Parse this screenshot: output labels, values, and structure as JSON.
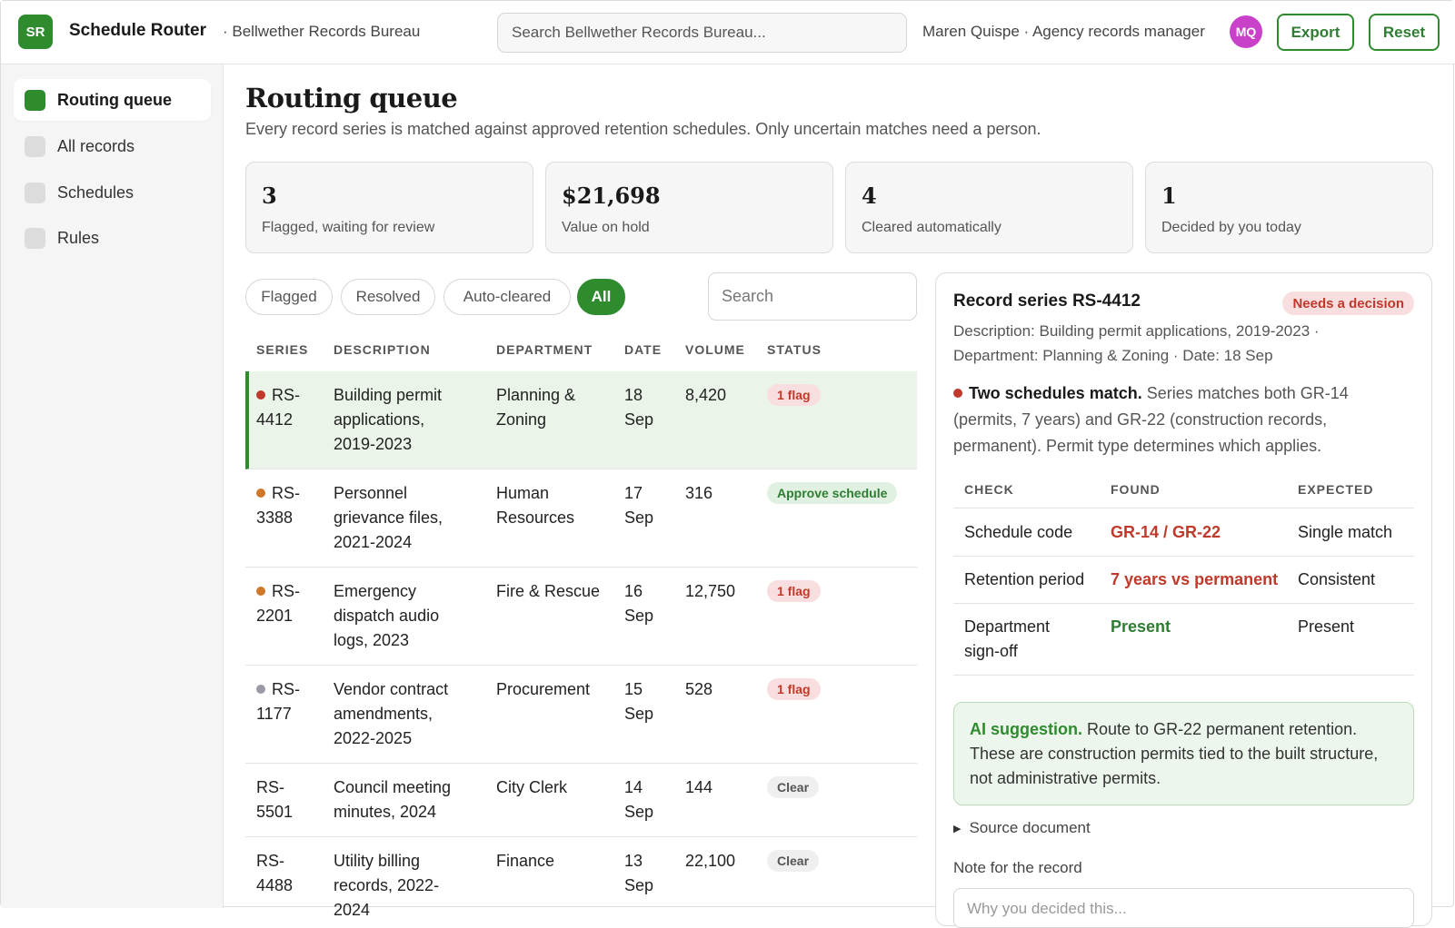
{
  "app": {
    "logo_text": "SR",
    "title": "Schedule Router",
    "org": "· Bellwether Records Bureau",
    "search_placeholder": "Search Bellwether Records Bureau...",
    "user_label": "Maren Quispe · Agency records manager",
    "avatar_initials": "MQ",
    "export_label": "Export",
    "reset_label": "Reset"
  },
  "sidebar": {
    "items": [
      {
        "label": "Routing queue",
        "active": true
      },
      {
        "label": "All records",
        "active": false
      },
      {
        "label": "Schedules",
        "active": false
      },
      {
        "label": "Rules",
        "active": false
      }
    ]
  },
  "main": {
    "title": "Routing queue",
    "subtitle": "Every record series is matched against approved retention schedules. Only uncertain matches need a person."
  },
  "stats": [
    {
      "value": "3",
      "label": "Flagged, waiting for review"
    },
    {
      "value": "$21,698",
      "label": "Value on hold"
    },
    {
      "value": "4",
      "label": "Cleared automatically"
    },
    {
      "value": "1",
      "label": "Decided by you today"
    }
  ],
  "filters": {
    "chips": [
      {
        "label": "Flagged",
        "active": false
      },
      {
        "label": "Resolved",
        "active": false
      },
      {
        "label": "Auto-cleared",
        "active": false
      },
      {
        "label": "All",
        "active": true
      }
    ],
    "search_placeholder": "Search"
  },
  "table": {
    "headers": [
      "SERIES",
      "DESCRIPTION",
      "DEPARTMENT",
      "DATE",
      "VOLUME",
      "STATUS"
    ],
    "rows": [
      {
        "series_a": "RS-",
        "series_b": "4412",
        "dot": "#c0392b",
        "desc": [
          "Building permit",
          "applications,",
          "2019-2023"
        ],
        "dept": [
          "Planning &",
          "Zoning"
        ],
        "date": [
          "18",
          "Sep"
        ],
        "volume": "8,420",
        "status": "1 flag",
        "status_kind": "flag",
        "selected": true
      },
      {
        "series_a": "RS-",
        "series_b": "3388",
        "dot": "#d0782a",
        "desc": [
          "Personnel",
          "grievance files,",
          "2021-2024"
        ],
        "dept": [
          "Human",
          "Resources"
        ],
        "date": [
          "17",
          "Sep"
        ],
        "volume": "316",
        "status": "Approve schedule",
        "status_kind": "approve",
        "selected": false
      },
      {
        "series_a": "RS-",
        "series_b": "2201",
        "dot": "#d0782a",
        "desc": [
          "Emergency",
          "dispatch audio",
          "logs, 2023"
        ],
        "dept": [
          "Fire & Rescue"
        ],
        "date": [
          "16",
          "Sep"
        ],
        "volume": "12,750",
        "status": "1 flag",
        "status_kind": "flag",
        "selected": false
      },
      {
        "series_a": "RS-",
        "series_b": "1177",
        "dot": "#9a9aa6",
        "desc": [
          "Vendor contract",
          "amendments,",
          "2022-2025"
        ],
        "dept": [
          "Procurement"
        ],
        "date": [
          "15",
          "Sep"
        ],
        "volume": "528",
        "status": "1 flag",
        "status_kind": "flag",
        "selected": false
      },
      {
        "series_a": "RS-",
        "series_b": "5501",
        "dot": "",
        "desc": [
          "Council meeting",
          "minutes, 2024"
        ],
        "dept": [
          "City Clerk"
        ],
        "date": [
          "14",
          "Sep"
        ],
        "volume": "144",
        "status": "Clear",
        "status_kind": "clear",
        "selected": false
      },
      {
        "series_a": "RS-",
        "series_b": "4488",
        "dot": "",
        "desc": [
          "Utility billing",
          "records, 2022-",
          "2024"
        ],
        "dept": [
          "Finance"
        ],
        "date": [
          "13",
          "Sep"
        ],
        "volume": "22,100",
        "status": "Clear",
        "status_kind": "clear",
        "selected": false
      }
    ]
  },
  "detail": {
    "title": "Record series RS-4412",
    "badge": "Needs a decision",
    "meta_line1": "Description: Building permit applications, 2019-2023 ·",
    "meta_line2": "Department: Planning & Zoning · Date: 18 Sep",
    "issue_bold": "Two schedules match.",
    "issue_text": " Series matches both GR-14 (permits, 7 years) and GR-22 (construction records, permanent). Permit type determines which applies.",
    "check_headers": [
      "CHECK",
      "FOUND",
      "EXPECTED"
    ],
    "checks": [
      {
        "check": [
          "Schedule code"
        ],
        "found": "GR-14 / GR-22",
        "found_kind": "bad",
        "expected": "Single match"
      },
      {
        "check": [
          "Retention period"
        ],
        "found": "7 years vs permanent",
        "found_kind": "bad",
        "expected": "Consistent"
      },
      {
        "check": [
          "Department",
          "sign-off"
        ],
        "found": "Present",
        "found_kind": "good",
        "expected": "Present"
      }
    ],
    "ai_label": "AI suggestion.",
    "ai_text": " Route to GR-22 permanent retention. These are construction permits tied to the built structure, not administrative permits.",
    "source_doc": "Source document",
    "note_label": "Note for the record",
    "note_placeholder": "Why you decided this..."
  },
  "colors": {
    "accent": "#2e8b2e",
    "flag": "#c0392b",
    "selected_row": "#eaf4e9",
    "avatar": "#c940c9"
  }
}
